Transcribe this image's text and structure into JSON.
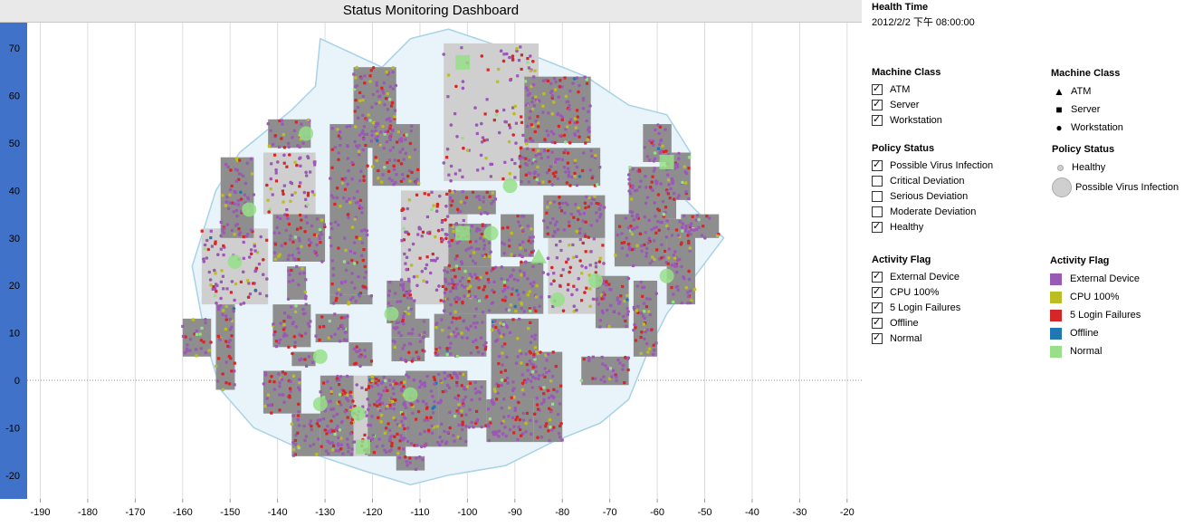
{
  "title": "Status Monitoring Dashboard",
  "health_time": {
    "label": "Health Time",
    "value": "2012/2/2 下午 08:00:00"
  },
  "filters": {
    "machine_class": {
      "title": "Machine Class",
      "items": [
        {
          "label": "ATM",
          "checked": true
        },
        {
          "label": "Server",
          "checked": true
        },
        {
          "label": "Workstation",
          "checked": true
        }
      ]
    },
    "policy_status": {
      "title": "Policy Status",
      "items": [
        {
          "label": "Possible Virus Infection",
          "checked": true
        },
        {
          "label": "Critical Deviation",
          "checked": false
        },
        {
          "label": "Serious Deviation",
          "checked": false
        },
        {
          "label": "Moderate Deviation",
          "checked": false
        },
        {
          "label": "Healthy",
          "checked": true
        }
      ]
    },
    "activity_flag": {
      "title": "Activity Flag",
      "items": [
        {
          "label": "External Device",
          "checked": true
        },
        {
          "label": "CPU 100%",
          "checked": true
        },
        {
          "label": "5 Login Failures",
          "checked": true
        },
        {
          "label": "Offline",
          "checked": true
        },
        {
          "label": "Normal",
          "checked": true
        }
      ]
    }
  },
  "legends": {
    "machine_class": {
      "title": "Machine Class",
      "items": [
        {
          "label": "ATM",
          "shape": "triangle"
        },
        {
          "label": "Server",
          "shape": "square"
        },
        {
          "label": "Workstation",
          "shape": "circle"
        }
      ]
    },
    "policy_status": {
      "title": "Policy Status",
      "items": [
        {
          "label": "Healthy",
          "size": "small"
        },
        {
          "label": "Possible Virus Infection",
          "size": "large"
        }
      ]
    },
    "activity_flag": {
      "title": "Activity Flag",
      "items": [
        {
          "label": "External Device",
          "color": "#9b59b6"
        },
        {
          "label": "CPU 100%",
          "color": "#bcbd22"
        },
        {
          "label": "5 Login Failures",
          "color": "#d62728"
        },
        {
          "label": "Offline",
          "color": "#1f77b4"
        },
        {
          "label": "Normal",
          "color": "#98df8a"
        }
      ]
    }
  },
  "colors": {
    "map_fill": "#e8f4fa",
    "map_stroke": "#a8d2e6",
    "block_dark": "#8e8e8e",
    "block_light": "#cfcfcf",
    "axis_band": "#3f72c8"
  },
  "chart_data": {
    "type": "scatter",
    "title": "Status Monitoring Dashboard",
    "xlabel": "",
    "ylabel": "",
    "xlim": [
      -192,
      -17
    ],
    "ylim": [
      -25,
      75
    ],
    "x_ticks": [
      -190,
      -180,
      -170,
      -160,
      -150,
      -140,
      -130,
      -120,
      -110,
      -100,
      -90,
      -80,
      -70,
      -60,
      -50,
      -40,
      -30,
      -20
    ],
    "y_ticks": [
      -20,
      -10,
      0,
      10,
      20,
      30,
      40,
      50,
      60,
      70
    ],
    "grid": true,
    "zero_line": true,
    "outline": [
      [
        -131,
        72
      ],
      [
        -118,
        66
      ],
      [
        -112,
        72
      ],
      [
        -104,
        74
      ],
      [
        -92,
        70
      ],
      [
        -85,
        68
      ],
      [
        -75,
        64
      ],
      [
        -66,
        58
      ],
      [
        -58,
        56
      ],
      [
        -53,
        48
      ],
      [
        -54,
        38
      ],
      [
        -46,
        30
      ],
      [
        -52,
        22
      ],
      [
        -58,
        14
      ],
      [
        -62,
        6
      ],
      [
        -66,
        -4
      ],
      [
        -72,
        -9
      ],
      [
        -82,
        -13
      ],
      [
        -92,
        -18
      ],
      [
        -104,
        -20
      ],
      [
        -112,
        -22
      ],
      [
        -122,
        -19
      ],
      [
        -134,
        -15
      ],
      [
        -145,
        -10
      ],
      [
        -152,
        -2
      ],
      [
        -155,
        8
      ],
      [
        -158,
        24
      ],
      [
        -153,
        40
      ],
      [
        -148,
        48
      ],
      [
        -137,
        57
      ],
      [
        -132,
        62
      ]
    ],
    "blocks": [
      {
        "x0": -105,
        "x1": -85,
        "y0": 42,
        "y1": 71,
        "tone": "light"
      },
      {
        "x0": -114,
        "x1": -100,
        "y0": 16,
        "y1": 40,
        "tone": "light"
      },
      {
        "x0": -83,
        "x1": -71,
        "y0": 14,
        "y1": 30,
        "tone": "light"
      },
      {
        "x0": -156,
        "x1": -142,
        "y0": 16,
        "y1": 32,
        "tone": "light"
      },
      {
        "x0": -143,
        "x1": -132,
        "y0": 35,
        "y1": 48,
        "tone": "light"
      },
      {
        "x0": -129,
        "x1": -113,
        "y0": -16,
        "y1": 1,
        "tone": "light"
      },
      {
        "x0": -124,
        "x1": -115,
        "y0": 49,
        "y1": 66,
        "tone": "dark"
      },
      {
        "x0": -88,
        "x1": -74,
        "y0": 50,
        "y1": 64,
        "tone": "dark"
      },
      {
        "x0": -142,
        "x1": -133,
        "y0": 49,
        "y1": 55,
        "tone": "dark"
      },
      {
        "x0": -129,
        "x1": -121,
        "y0": 18,
        "y1": 54,
        "tone": "dark"
      },
      {
        "x0": -120,
        "x1": -110,
        "y0": 41,
        "y1": 54,
        "tone": "dark"
      },
      {
        "x0": -89,
        "x1": -72,
        "y0": 41,
        "y1": 49,
        "tone": "dark"
      },
      {
        "x0": -66,
        "x1": -56,
        "y0": 34,
        "y1": 45,
        "tone": "dark"
      },
      {
        "x0": -63,
        "x1": -57,
        "y0": 46,
        "y1": 54,
        "tone": "dark"
      },
      {
        "x0": -58,
        "x1": -53,
        "y0": 38,
        "y1": 48,
        "tone": "dark"
      },
      {
        "x0": -55,
        "x1": -47,
        "y0": 30,
        "y1": 35,
        "tone": "dark"
      },
      {
        "x0": -152,
        "x1": -145,
        "y0": 30,
        "y1": 47,
        "tone": "dark"
      },
      {
        "x0": -141,
        "x1": -130,
        "y0": 25,
        "y1": 35,
        "tone": "dark"
      },
      {
        "x0": -104,
        "x1": -94,
        "y0": 35,
        "y1": 40,
        "tone": "dark"
      },
      {
        "x0": -104,
        "x1": -95,
        "y0": 24,
        "y1": 33,
        "tone": "dark"
      },
      {
        "x0": -93,
        "x1": -86,
        "y0": 26,
        "y1": 35,
        "tone": "dark"
      },
      {
        "x0": -84,
        "x1": -71,
        "y0": 30,
        "y1": 39,
        "tone": "dark"
      },
      {
        "x0": -69,
        "x1": -58,
        "y0": 24,
        "y1": 35,
        "tone": "dark"
      },
      {
        "x0": -58,
        "x1": -52,
        "y0": 16,
        "y1": 34,
        "tone": "dark"
      },
      {
        "x0": -105,
        "x1": -88,
        "y0": 14,
        "y1": 24,
        "tone": "dark"
      },
      {
        "x0": -89,
        "x1": -84,
        "y0": 14,
        "y1": 25,
        "tone": "dark"
      },
      {
        "x0": -73,
        "x1": -66,
        "y0": 11,
        "y1": 22,
        "tone": "dark"
      },
      {
        "x0": -65,
        "x1": -60,
        "y0": 5,
        "y1": 21,
        "tone": "dark"
      },
      {
        "x0": -138,
        "x1": -134,
        "y0": 17,
        "y1": 24,
        "tone": "dark"
      },
      {
        "x0": -129,
        "x1": -120,
        "y0": 16,
        "y1": 18,
        "tone": "dark"
      },
      {
        "x0": -117,
        "x1": -112,
        "y0": 17,
        "y1": 21,
        "tone": "dark"
      },
      {
        "x0": -117,
        "x1": -111,
        "y0": 12,
        "y1": 17,
        "tone": "dark"
      },
      {
        "x0": -160,
        "x1": -154,
        "y0": 5,
        "y1": 13,
        "tone": "dark"
      },
      {
        "x0": -153,
        "x1": -149,
        "y0": -2,
        "y1": 16,
        "tone": "dark"
      },
      {
        "x0": -141,
        "x1": -133,
        "y0": 7,
        "y1": 16,
        "tone": "dark"
      },
      {
        "x0": -132,
        "x1": -125,
        "y0": 8,
        "y1": 14,
        "tone": "dark"
      },
      {
        "x0": -125,
        "x1": -120,
        "y0": 3,
        "y1": 8,
        "tone": "dark"
      },
      {
        "x0": -116,
        "x1": -109,
        "y0": 4,
        "y1": 9,
        "tone": "dark"
      },
      {
        "x0": -116,
        "x1": -108,
        "y0": 9,
        "y1": 13,
        "tone": "dark"
      },
      {
        "x0": -107,
        "x1": -96,
        "y0": 5,
        "y1": 14,
        "tone": "dark"
      },
      {
        "x0": -95,
        "x1": -85,
        "y0": -4,
        "y1": 13,
        "tone": "dark"
      },
      {
        "x0": -85,
        "x1": -80,
        "y0": -4,
        "y1": 6,
        "tone": "dark"
      },
      {
        "x0": -76,
        "x1": -66,
        "y0": -1,
        "y1": 5,
        "tone": "dark"
      },
      {
        "x0": -137,
        "x1": -132,
        "y0": 3,
        "y1": 6,
        "tone": "dark"
      },
      {
        "x0": -143,
        "x1": -135,
        "y0": -7,
        "y1": 2,
        "tone": "dark"
      },
      {
        "x0": -137,
        "x1": -131,
        "y0": -16,
        "y1": -7,
        "tone": "dark"
      },
      {
        "x0": -131,
        "x1": -124,
        "y0": -16,
        "y1": 1,
        "tone": "dark"
      },
      {
        "x0": -121,
        "x1": -113,
        "y0": -16,
        "y1": 1,
        "tone": "dark"
      },
      {
        "x0": -113,
        "x1": -106,
        "y0": -14,
        "y1": 2,
        "tone": "dark"
      },
      {
        "x0": -106,
        "x1": -100,
        "y0": -14,
        "y1": 2,
        "tone": "dark"
      },
      {
        "x0": -102,
        "x1": -96,
        "y0": -10,
        "y1": 0,
        "tone": "dark"
      },
      {
        "x0": -96,
        "x1": -86,
        "y0": -13,
        "y1": -4,
        "tone": "dark"
      },
      {
        "x0": -86,
        "x1": -80,
        "y0": -13,
        "y1": -4,
        "tone": "dark"
      },
      {
        "x0": -115,
        "x1": -109,
        "y0": -19,
        "y1": -16,
        "tone": "dark"
      }
    ],
    "highlights": [
      {
        "x": -91,
        "y": 41,
        "shape": "circle",
        "size": "large"
      },
      {
        "x": -95,
        "y": 31,
        "shape": "circle",
        "size": "large"
      },
      {
        "x": -101,
        "y": 31,
        "shape": "square",
        "size": "large"
      },
      {
        "x": -85,
        "y": 26,
        "shape": "triangle",
        "size": "large"
      },
      {
        "x": -81,
        "y": 17,
        "shape": "circle",
        "size": "large"
      },
      {
        "x": -73,
        "y": 21,
        "shape": "circle",
        "size": "large"
      },
      {
        "x": -116,
        "y": 14,
        "shape": "circle",
        "size": "large"
      },
      {
        "x": -131,
        "y": 5,
        "shape": "circle",
        "size": "large"
      },
      {
        "x": -131,
        "y": -5,
        "shape": "circle",
        "size": "large"
      },
      {
        "x": -123,
        "y": -7,
        "shape": "circle",
        "size": "large"
      },
      {
        "x": -122,
        "y": -14,
        "shape": "square",
        "size": "large"
      },
      {
        "x": -112,
        "y": -3,
        "shape": "circle",
        "size": "large"
      },
      {
        "x": -101,
        "y": 67,
        "shape": "square",
        "size": "large"
      },
      {
        "x": -134,
        "y": 52,
        "shape": "circle",
        "size": "large"
      },
      {
        "x": -58,
        "y": 46,
        "shape": "square",
        "size": "large"
      },
      {
        "x": -58,
        "y": 22,
        "shape": "circle",
        "size": "large"
      },
      {
        "x": -146,
        "y": 36,
        "shape": "circle",
        "size": "large"
      },
      {
        "x": -149,
        "y": 25,
        "shape": "circle",
        "size": "large"
      }
    ],
    "points_note": ""
  }
}
